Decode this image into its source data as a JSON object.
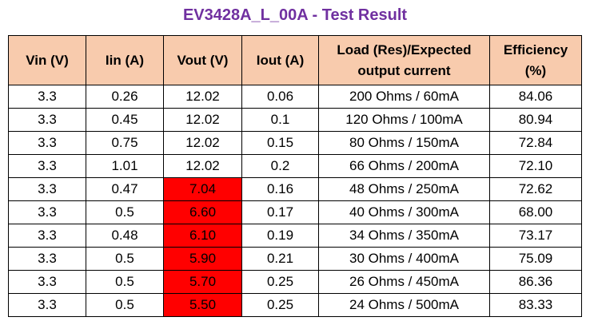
{
  "title": "EV3428A_L_00A - Test Result",
  "table": {
    "header": [
      "Vin (V)",
      "Iin (A)",
      "Vout (V)",
      "Iout (A)",
      "Load (Res)/Expected output current",
      "Efficiency (%)"
    ],
    "rows": [
      [
        "3.3",
        "0.26",
        "12.02",
        "0.06",
        "200 Ohms / 60mA",
        "84.06"
      ],
      [
        "3.3",
        "0.45",
        "12.02",
        "0.1",
        "120 Ohms / 100mA",
        "80.94"
      ],
      [
        "3.3",
        "0.75",
        "12.02",
        "0.15",
        "80 Ohms / 150mA",
        "72.84"
      ],
      [
        "3.3",
        "1.01",
        "12.02",
        "0.2",
        "66 Ohms / 200mA",
        "72.10"
      ],
      [
        "3.3",
        "0.47",
        "7.04",
        "0.16",
        "48 Ohms / 250mA",
        "72.62"
      ],
      [
        "3.3",
        "0.5",
        "6.60",
        "0.17",
        "40 Ohms / 300mA",
        "68.00"
      ],
      [
        "3.3",
        "0.48",
        "6.10",
        "0.19",
        "34 Ohms / 350mA",
        "73.17"
      ],
      [
        "3.3",
        "0.5",
        "5.90",
        "0.21",
        "30 Ohms / 400mA",
        "75.09"
      ],
      [
        "3.3",
        "0.5",
        "5.70",
        "0.25",
        "26 Ohms / 450mA",
        "86.36"
      ],
      [
        "3.3",
        "0.5",
        "5.50",
        "0.25",
        "24 Ohms / 500mA",
        "83.33"
      ]
    ],
    "highlight": {
      "column": 2,
      "rows": [
        4,
        5,
        6,
        7,
        8,
        9
      ],
      "color": "#ff0000"
    },
    "header_color": "#f8cbad"
  }
}
